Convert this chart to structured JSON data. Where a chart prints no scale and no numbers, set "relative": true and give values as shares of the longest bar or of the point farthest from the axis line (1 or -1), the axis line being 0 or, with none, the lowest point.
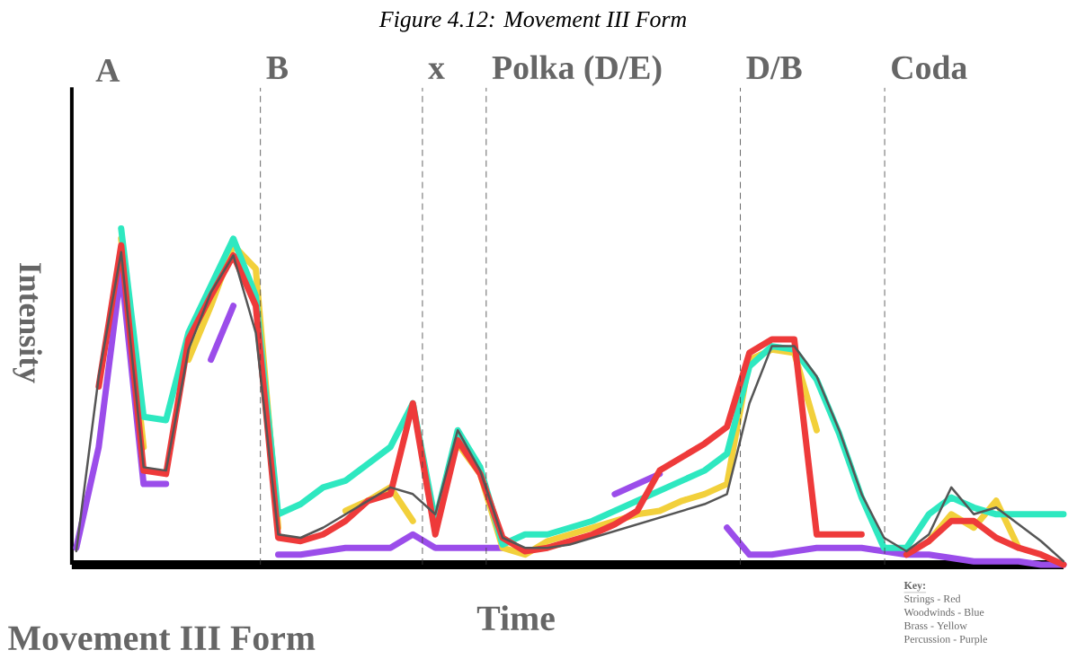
{
  "chart_data": {
    "type": "line",
    "relative": true,
    "title": "Figure 4.12: Movement III Form",
    "xlabel": "Time",
    "ylabel": "Intensity",
    "categories": [
      null,
      null,
      null,
      null,
      null,
      null,
      null,
      null,
      null,
      null,
      null,
      null,
      null,
      null,
      null,
      null,
      null,
      null,
      null,
      null,
      null,
      null,
      null,
      null,
      null,
      null,
      null,
      null,
      null,
      null,
      null,
      null,
      null,
      null,
      null,
      null,
      null,
      null,
      null,
      null,
      null,
      null,
      null,
      null,
      null
    ],
    "series": [
      {
        "color": "#555555",
        "values": [
          0.04,
          0.56,
          0.93,
          0.29,
          0.28,
          0.64,
          0.81,
          0.92,
          0.69,
          0.09,
          0.08,
          0.11,
          0.15,
          0.19,
          0.23,
          0.21,
          0.15,
          0.4,
          0.28,
          0.08,
          0.05,
          0.05,
          0.06,
          0.08,
          0.1,
          0.12,
          0.14,
          0.16,
          0.18,
          0.21,
          0.48,
          0.65,
          0.65,
          0.56,
          0.4,
          0.21,
          0.08,
          0.04,
          0.09,
          0.23,
          0.15,
          0.17,
          0.12,
          0.07,
          0.01
        ]
      },
      {
        "color": "#ee3a3a",
        "values": [
          null,
          0.53,
          0.95,
          0.28,
          0.27,
          0.67,
          0.8,
          0.92,
          0.77,
          0.08,
          0.07,
          0.09,
          0.13,
          0.19,
          0.21,
          0.48,
          0.09,
          0.37,
          0.27,
          0.08,
          0.04,
          0.05,
          0.07,
          0.09,
          0.12,
          0.16,
          0.28,
          0.32,
          0.36,
          0.41,
          0.63,
          0.67,
          0.67,
          0.09,
          0.09,
          0.09,
          null,
          0.03,
          0.07,
          0.13,
          0.13,
          0.08,
          0.05,
          0.03,
          0
        ]
      },
      {
        "color": "#2ee8c0",
        "values": [
          null,
          null,
          1,
          0.44,
          0.43,
          0.69,
          0.83,
          0.97,
          0.8,
          0.15,
          0.18,
          0.23,
          0.25,
          0.3,
          0.35,
          0.48,
          0.13,
          0.4,
          0.29,
          0.06,
          0.09,
          0.09,
          0.11,
          0.13,
          0.16,
          0.19,
          0.22,
          0.25,
          0.28,
          0.33,
          0.59,
          0.65,
          0.64,
          0.55,
          0.39,
          0.2,
          0.05,
          0.05,
          0.15,
          0.2,
          0.17,
          0.15,
          0.15,
          0.15,
          0.15
        ]
      },
      {
        "color": "#f2d03b",
        "values": [
          null,
          null,
          0.97,
          0.35,
          null,
          0.61,
          0.77,
          0.95,
          0.88,
          0.11,
          null,
          null,
          0.16,
          0.19,
          0.23,
          0.13,
          null,
          0.36,
          0.27,
          0.05,
          0.03,
          0.07,
          0.09,
          0.11,
          0.13,
          0.15,
          0.16,
          0.19,
          0.21,
          0.24,
          0.61,
          0.64,
          0.63,
          0.4,
          null,
          null,
          null,
          null,
          0.07,
          0.15,
          0.11,
          0.19,
          0.05,
          null,
          null
        ]
      },
      {
        "color": "#9b4dea",
        "values": [
          0.05,
          0.35,
          0.88,
          0.24,
          0.24,
          null,
          0.61,
          0.77,
          null,
          0.03,
          0.03,
          0.04,
          0.05,
          0.05,
          0.05,
          0.09,
          0.05,
          0.05,
          0.05,
          0.05,
          null,
          null,
          null,
          null,
          0.21,
          0.24,
          0.27,
          null,
          null,
          0.11,
          0.03,
          0.03,
          0.04,
          0.05,
          0.05,
          0.05,
          0.04,
          0.03,
          0.03,
          0.02,
          0.01,
          0.01,
          0.01,
          0,
          0
        ]
      }
    ],
    "annotations": [
      "A",
      "Movement III Form",
      "Key:",
      "Strings - Red",
      "Woodwinds - Blue",
      "Brass - Yellow",
      "Percussion - Purple",
      "B",
      "x",
      "Polka (D/E)",
      "D/B",
      "Coda"
    ],
    "marker": "none",
    "line_style": "solid"
  }
}
